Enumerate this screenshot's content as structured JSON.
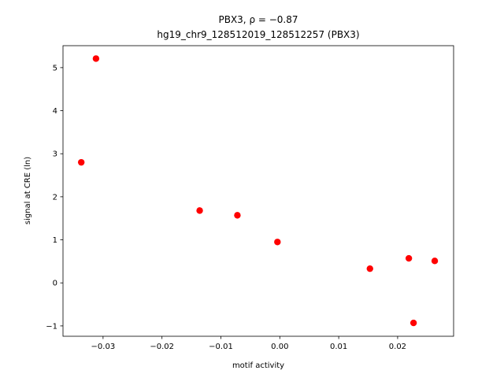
{
  "chart_data": {
    "type": "scatter",
    "title": "PBX3, ρ = −0.87",
    "subtitle": "hg19_chr9_128512019_128512257 (PBX3)",
    "x_label": "motif activity",
    "y_label": "signal at CRE (ln)",
    "color": "#ff0000",
    "x": [
      -0.0312,
      -0.0337,
      -0.0136,
      -0.0072,
      -0.0004,
      0.0153,
      0.0219,
      0.0263,
      0.0227
    ],
    "y": [
      5.21,
      2.8,
      1.68,
      1.57,
      0.95,
      0.33,
      0.57,
      0.51,
      -0.93
    ],
    "xlim": [
      -0.0368,
      0.0295
    ],
    "ylim": [
      -1.24,
      5.51
    ],
    "xticks": [
      {
        "value": -0.03,
        "label": "−0.03"
      },
      {
        "value": -0.02,
        "label": "−0.02"
      },
      {
        "value": -0.01,
        "label": "−0.01"
      },
      {
        "value": 0,
        "label": "0.00"
      },
      0.01,
      0.02
    ],
    "yticks": [
      {
        "value": -1,
        "label": "−1"
      },
      0,
      1,
      2,
      3,
      4,
      5
    ],
    "grid": false
  }
}
